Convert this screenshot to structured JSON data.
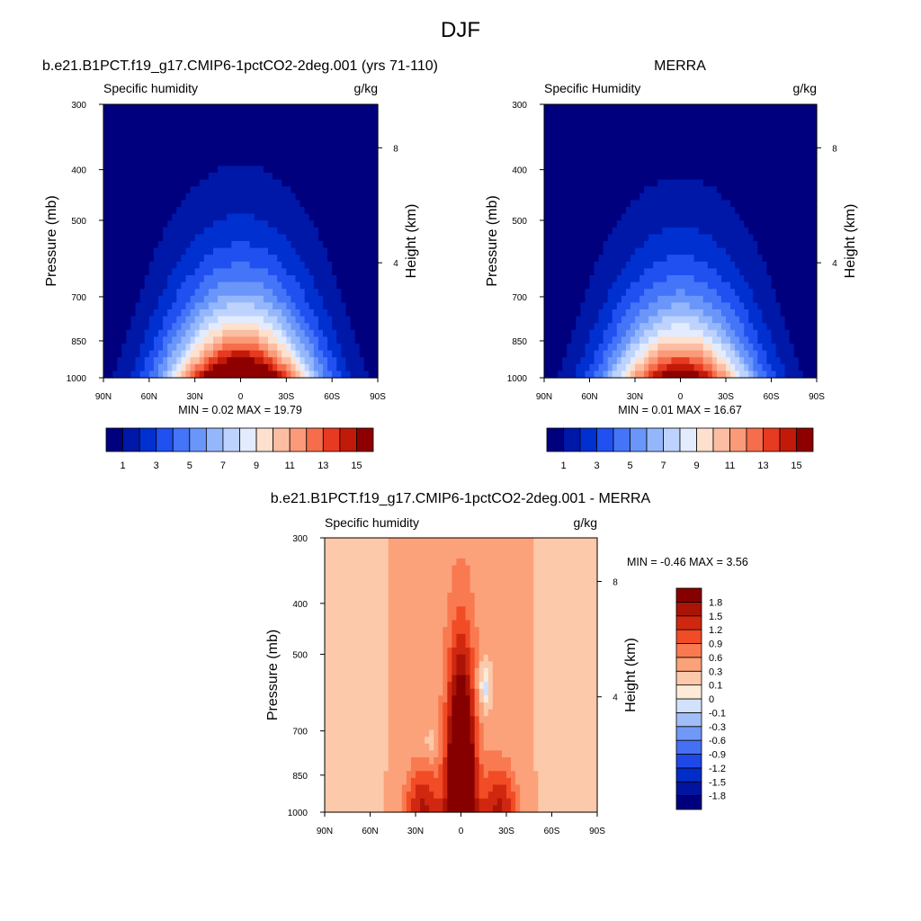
{
  "figure": {
    "title": "DJF"
  },
  "chart_data": [
    {
      "type": "heatmap",
      "title": "b.e21.B1PCT.f19_g17.CMIP6-1pctCO2-2deg.001 (yrs 71-110)",
      "subtitle_left": "Specific humidity",
      "units": "g/kg",
      "xlabel": "",
      "ylabel": "Pressure (mb)",
      "ylabel_right": "Height (km)",
      "x_ticks": [
        "90N",
        "60N",
        "30N",
        "0",
        "30S",
        "60S",
        "90S"
      ],
      "xlim": [
        90,
        -90
      ],
      "y_ticks": [
        300,
        400,
        500,
        700,
        850,
        1000
      ],
      "ylim": [
        1000,
        300
      ],
      "y_scale": "log",
      "height_ticks": [
        4,
        8
      ],
      "stats_text": "MIN =   0.02  MAX =  19.79",
      "min": 0.02,
      "max": 19.79,
      "peak_pressure": 1000,
      "colorbar": {
        "orientation": "horizontal",
        "levels": [
          1,
          2,
          3,
          4,
          5,
          6,
          7,
          8,
          9,
          10,
          11,
          12,
          13,
          14,
          15
        ],
        "labels": [
          "1",
          "3",
          "5",
          "7",
          "9",
          "11",
          "13",
          "15"
        ],
        "colors": [
          "#00007f",
          "#0018a8",
          "#0030d0",
          "#2050f0",
          "#4474f8",
          "#6a96fa",
          "#94b7fc",
          "#bdd3fd",
          "#e2ecfe",
          "#fde0ce",
          "#fcbda3",
          "#fb9a78",
          "#f66d4c",
          "#e63a21",
          "#c11a08",
          "#8e0000"
        ]
      }
    },
    {
      "type": "heatmap",
      "title": "MERRA",
      "subtitle_left": "Specific Humidity",
      "units": "g/kg",
      "xlabel": "",
      "ylabel": "Pressure (mb)",
      "ylabel_right": "Height (km)",
      "x_ticks": [
        "90N",
        "60N",
        "30N",
        "0",
        "30S",
        "60S",
        "90S"
      ],
      "xlim": [
        90,
        -90
      ],
      "y_ticks": [
        300,
        400,
        500,
        700,
        850,
        1000
      ],
      "ylim": [
        1000,
        300
      ],
      "y_scale": "log",
      "height_ticks": [
        4,
        8
      ],
      "stats_text": "MIN =   0.01  MAX =  16.67",
      "min": 0.01,
      "max": 16.67,
      "peak_pressure": 1000,
      "colorbar": {
        "orientation": "horizontal",
        "levels": [
          1,
          2,
          3,
          4,
          5,
          6,
          7,
          8,
          9,
          10,
          11,
          12,
          13,
          14,
          15
        ],
        "labels": [
          "1",
          "3",
          "5",
          "7",
          "9",
          "11",
          "13",
          "15"
        ],
        "colors": [
          "#00007f",
          "#0018a8",
          "#0030d0",
          "#2050f0",
          "#4474f8",
          "#6a96fa",
          "#94b7fc",
          "#bdd3fd",
          "#e2ecfe",
          "#fde0ce",
          "#fcbda3",
          "#fb9a78",
          "#f66d4c",
          "#e63a21",
          "#c11a08",
          "#8e0000"
        ]
      }
    },
    {
      "type": "heatmap",
      "title": "b.e21.B1PCT.f19_g17.CMIP6-1pctCO2-2deg.001 - MERRA",
      "subtitle_left": "Specific humidity",
      "units": "g/kg",
      "xlabel": "",
      "ylabel": "Pressure (mb)",
      "ylabel_right": "Height (km)",
      "x_ticks": [
        "90N",
        "60N",
        "30N",
        "0",
        "30S",
        "60S",
        "90S"
      ],
      "xlim": [
        90,
        -90
      ],
      "y_ticks": [
        300,
        400,
        500,
        700,
        850,
        1000
      ],
      "ylim": [
        1000,
        300
      ],
      "y_scale": "log",
      "height_ticks": [
        4,
        8
      ],
      "stats_text": "MIN =  -0.46  MAX =   3.56",
      "min": -0.46,
      "max": 3.56,
      "colorbar": {
        "orientation": "vertical",
        "levels": [
          -1.8,
          -1.5,
          -1.2,
          -0.9,
          -0.6,
          -0.3,
          -0.1,
          0,
          0.1,
          0.3,
          0.6,
          0.9,
          1.2,
          1.5,
          1.8
        ],
        "labels": [
          "-1.8",
          "-1.5",
          "-1.2",
          "-0.9",
          "-0.6",
          "-0.3",
          "-0.1",
          "0",
          "0.1",
          "0.3",
          "0.6",
          "0.9",
          "1.2",
          "1.5",
          "1.8"
        ],
        "colors": [
          "#00007f",
          "#0014a0",
          "#002cc8",
          "#1e48e8",
          "#4670f2",
          "#7098f6",
          "#a2bef8",
          "#d2e2fc",
          "#fdebd9",
          "#fcc9aa",
          "#fba27a",
          "#f97a50",
          "#f14c26",
          "#d02810",
          "#aa1406",
          "#860000"
        ]
      }
    }
  ]
}
